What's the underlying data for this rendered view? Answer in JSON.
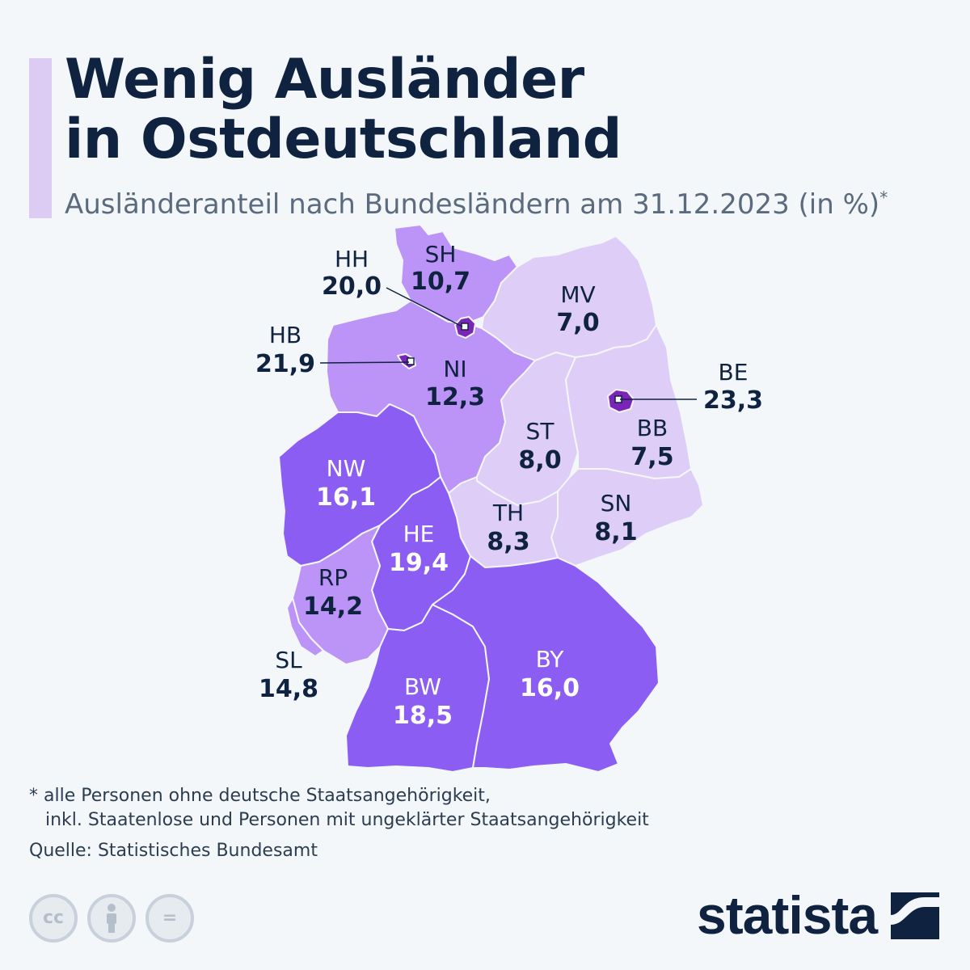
{
  "header": {
    "title_line1": "Wenig Ausländer",
    "title_line2": "in Ostdeutschland",
    "subtitle": "Ausländeranteil nach Bundesländern am 31.12.2023 (in %)",
    "subtitle_marker": "*"
  },
  "colors": {
    "light": "#decdf6",
    "medium": "#bc93f6",
    "dark": "#8b5df2",
    "city": "#7a24b8",
    "label_dark": "#0f2340",
    "label_light": "#ffffff",
    "background": "#f3f7fa"
  },
  "chart_data": {
    "type": "choropleth",
    "unit": "%",
    "regions": [
      {
        "code": "SH",
        "value": "10,7"
      },
      {
        "code": "HH",
        "value": "20,0"
      },
      {
        "code": "MV",
        "value": "7,0"
      },
      {
        "code": "HB",
        "value": "21,9"
      },
      {
        "code": "NI",
        "value": "12,3"
      },
      {
        "code": "BE",
        "value": "23,3"
      },
      {
        "code": "ST",
        "value": "8,0"
      },
      {
        "code": "BB",
        "value": "7,5"
      },
      {
        "code": "NW",
        "value": "16,1"
      },
      {
        "code": "SN",
        "value": "8,1"
      },
      {
        "code": "TH",
        "value": "8,3"
      },
      {
        "code": "HE",
        "value": "19,4"
      },
      {
        "code": "RP",
        "value": "14,2"
      },
      {
        "code": "SL",
        "value": "14,8"
      },
      {
        "code": "BY",
        "value": "16,0"
      },
      {
        "code": "BW",
        "value": "18,5"
      }
    ]
  },
  "footer": {
    "footnote_line1": "* alle Personen ohne deutsche Staatsangehörigkeit,",
    "footnote_line2": "inkl. Staatenlose und Personen mit ungeklärter Staatsangehörigkeit",
    "source": "Quelle: Statistisches Bundesamt",
    "license_icons": [
      "cc-icon",
      "attribution-icon",
      "no-derivatives-icon"
    ],
    "cc_label": "cc",
    "nd_label": "=",
    "brand": "statista"
  }
}
